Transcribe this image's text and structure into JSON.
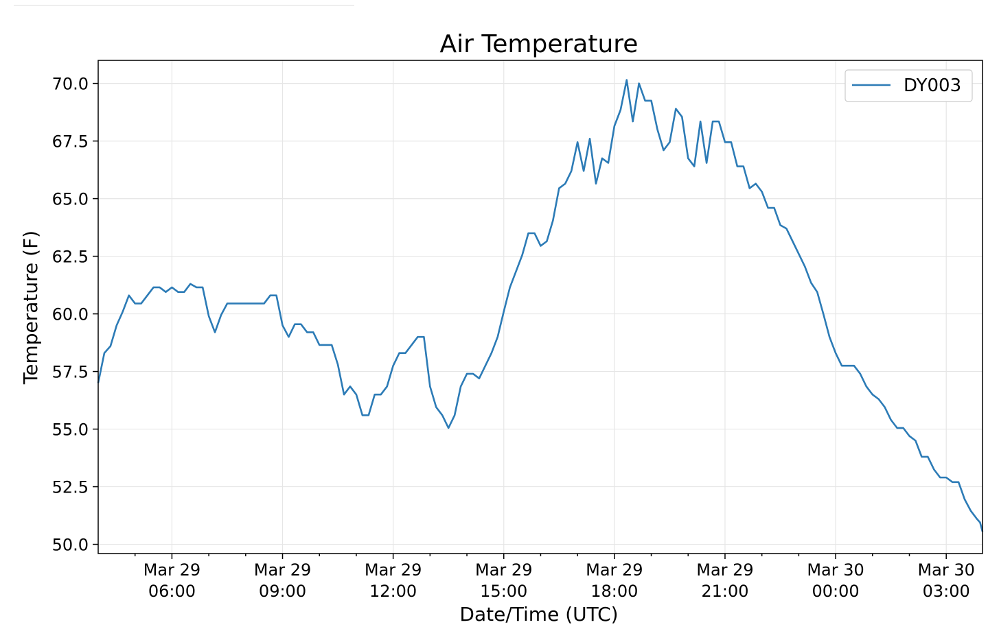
{
  "chart_data": {
    "type": "line",
    "title": "Air Temperature",
    "xlabel": "Date/Time (UTC)",
    "ylabel": "Temperature (F)",
    "ylim": [
      49.6,
      71.0
    ],
    "yticks": [
      50.0,
      52.5,
      55.0,
      57.5,
      60.0,
      62.5,
      65.0,
      67.5,
      70.0
    ],
    "ytick_labels": [
      "50.0",
      "52.5",
      "55.0",
      "57.5",
      "60.0",
      "62.5",
      "65.0",
      "67.5",
      "70.0"
    ],
    "xlim": [
      "2019-03-29T04:00",
      "2019-03-30T03:59"
    ],
    "xticks": [
      {
        "x": "2019-03-29T06:00",
        "line1": "Mar 29",
        "line2": "06:00"
      },
      {
        "x": "2019-03-29T09:00",
        "line1": "Mar 29",
        "line2": "09:00"
      },
      {
        "x": "2019-03-29T12:00",
        "line1": "Mar 29",
        "line2": "12:00"
      },
      {
        "x": "2019-03-29T15:00",
        "line1": "Mar 29",
        "line2": "15:00"
      },
      {
        "x": "2019-03-29T18:00",
        "line1": "Mar 29",
        "line2": "18:00"
      },
      {
        "x": "2019-03-29T21:00",
        "line1": "Mar 29",
        "line2": "21:00"
      },
      {
        "x": "2019-03-30T00:00",
        "line1": "Mar 30",
        "line2": "00:00"
      },
      {
        "x": "2019-03-30T03:00",
        "line1": "Mar 30",
        "line2": "03:00"
      }
    ],
    "minor_xticks": [
      "2019-03-29T05:00",
      "2019-03-29T07:00",
      "2019-03-29T08:00",
      "2019-03-29T10:00",
      "2019-03-29T11:00",
      "2019-03-29T13:00",
      "2019-03-29T14:00",
      "2019-03-29T16:00",
      "2019-03-29T17:00",
      "2019-03-29T19:00",
      "2019-03-29T20:00",
      "2019-03-29T22:00",
      "2019-03-29T23:00",
      "2019-03-30T01:00",
      "2019-03-30T02:00"
    ],
    "grid": true,
    "legend_position": "top-right",
    "series": [
      {
        "name": "DY003",
        "color": "#2c7bb6",
        "points": [
          [
            "2019-03-29T04:00",
            57.0
          ],
          [
            "2019-03-29T04:10",
            58.3
          ],
          [
            "2019-03-29T04:20",
            58.6
          ],
          [
            "2019-03-29T04:30",
            59.5
          ],
          [
            "2019-03-29T04:40",
            60.1
          ],
          [
            "2019-03-29T04:50",
            60.8
          ],
          [
            "2019-03-29T05:00",
            60.45
          ],
          [
            "2019-03-29T05:10",
            60.45
          ],
          [
            "2019-03-29T05:20",
            60.8
          ],
          [
            "2019-03-29T05:30",
            61.15
          ],
          [
            "2019-03-29T05:40",
            61.15
          ],
          [
            "2019-03-29T05:50",
            60.95
          ],
          [
            "2019-03-29T06:00",
            61.15
          ],
          [
            "2019-03-29T06:10",
            60.95
          ],
          [
            "2019-03-29T06:20",
            60.95
          ],
          [
            "2019-03-29T06:30",
            61.3
          ],
          [
            "2019-03-29T06:40",
            61.15
          ],
          [
            "2019-03-29T06:50",
            61.15
          ],
          [
            "2019-03-29T07:00",
            59.9
          ],
          [
            "2019-03-29T07:10",
            59.2
          ],
          [
            "2019-03-29T07:20",
            59.95
          ],
          [
            "2019-03-29T07:30",
            60.45
          ],
          [
            "2019-03-29T07:40",
            60.45
          ],
          [
            "2019-03-29T07:50",
            60.45
          ],
          [
            "2019-03-29T08:00",
            60.45
          ],
          [
            "2019-03-29T08:10",
            60.45
          ],
          [
            "2019-03-29T08:20",
            60.45
          ],
          [
            "2019-03-29T08:30",
            60.45
          ],
          [
            "2019-03-29T08:40",
            60.8
          ],
          [
            "2019-03-29T08:50",
            60.8
          ],
          [
            "2019-03-29T09:00",
            59.5
          ],
          [
            "2019-03-29T09:10",
            59.0
          ],
          [
            "2019-03-29T09:20",
            59.55
          ],
          [
            "2019-03-29T09:30",
            59.55
          ],
          [
            "2019-03-29T09:40",
            59.2
          ],
          [
            "2019-03-29T09:50",
            59.2
          ],
          [
            "2019-03-29T10:00",
            58.65
          ],
          [
            "2019-03-29T10:10",
            58.65
          ],
          [
            "2019-03-29T10:20",
            58.65
          ],
          [
            "2019-03-29T10:30",
            57.8
          ],
          [
            "2019-03-29T10:40",
            56.5
          ],
          [
            "2019-03-29T10:50",
            56.85
          ],
          [
            "2019-03-29T11:00",
            56.5
          ],
          [
            "2019-03-29T11:10",
            55.6
          ],
          [
            "2019-03-29T11:20",
            55.6
          ],
          [
            "2019-03-29T11:30",
            56.5
          ],
          [
            "2019-03-29T11:40",
            56.5
          ],
          [
            "2019-03-29T11:50",
            56.85
          ],
          [
            "2019-03-29T12:00",
            57.75
          ],
          [
            "2019-03-29T12:10",
            58.3
          ],
          [
            "2019-03-29T12:20",
            58.3
          ],
          [
            "2019-03-29T12:30",
            58.65
          ],
          [
            "2019-03-29T12:40",
            59.0
          ],
          [
            "2019-03-29T12:50",
            59.0
          ],
          [
            "2019-03-29T13:00",
            56.85
          ],
          [
            "2019-03-29T13:10",
            55.95
          ],
          [
            "2019-03-29T13:20",
            55.6
          ],
          [
            "2019-03-29T13:30",
            55.05
          ],
          [
            "2019-03-29T13:40",
            55.6
          ],
          [
            "2019-03-29T13:50",
            56.85
          ],
          [
            "2019-03-29T14:00",
            57.4
          ],
          [
            "2019-03-29T14:10",
            57.4
          ],
          [
            "2019-03-29T14:20",
            57.2
          ],
          [
            "2019-03-29T14:30",
            57.75
          ],
          [
            "2019-03-29T14:40",
            58.3
          ],
          [
            "2019-03-29T14:50",
            59.0
          ],
          [
            "2019-03-29T15:00",
            60.1
          ],
          [
            "2019-03-29T15:10",
            61.15
          ],
          [
            "2019-03-29T15:20",
            61.85
          ],
          [
            "2019-03-29T15:30",
            62.55
          ],
          [
            "2019-03-29T15:40",
            63.5
          ],
          [
            "2019-03-29T15:50",
            63.5
          ],
          [
            "2019-03-29T16:00",
            62.95
          ],
          [
            "2019-03-29T16:10",
            63.15
          ],
          [
            "2019-03-29T16:20",
            64.05
          ],
          [
            "2019-03-29T16:30",
            65.45
          ],
          [
            "2019-03-29T16:40",
            65.65
          ],
          [
            "2019-03-29T16:50",
            66.2
          ],
          [
            "2019-03-29T17:00",
            67.45
          ],
          [
            "2019-03-29T17:10",
            66.2
          ],
          [
            "2019-03-29T17:20",
            67.6
          ],
          [
            "2019-03-29T17:30",
            65.65
          ],
          [
            "2019-03-29T17:40",
            66.75
          ],
          [
            "2019-03-29T17:50",
            66.55
          ],
          [
            "2019-03-29T18:00",
            68.15
          ],
          [
            "2019-03-29T18:10",
            68.85
          ],
          [
            "2019-03-29T18:20",
            70.15
          ],
          [
            "2019-03-29T18:30",
            68.35
          ],
          [
            "2019-03-29T18:40",
            70.0
          ],
          [
            "2019-03-29T18:50",
            69.25
          ],
          [
            "2019-03-29T19:00",
            69.25
          ],
          [
            "2019-03-29T19:10",
            68.0
          ],
          [
            "2019-03-29T19:20",
            67.1
          ],
          [
            "2019-03-29T19:30",
            67.45
          ],
          [
            "2019-03-29T19:40",
            68.9
          ],
          [
            "2019-03-29T19:50",
            68.55
          ],
          [
            "2019-03-29T20:00",
            66.75
          ],
          [
            "2019-03-29T20:10",
            66.4
          ],
          [
            "2019-03-29T20:20",
            68.35
          ],
          [
            "2019-03-29T20:30",
            66.55
          ],
          [
            "2019-03-29T20:40",
            68.35
          ],
          [
            "2019-03-29T20:50",
            68.35
          ],
          [
            "2019-03-29T21:00",
            67.45
          ],
          [
            "2019-03-29T21:10",
            67.45
          ],
          [
            "2019-03-29T21:20",
            66.4
          ],
          [
            "2019-03-29T21:30",
            66.4
          ],
          [
            "2019-03-29T21:40",
            65.45
          ],
          [
            "2019-03-29T21:50",
            65.65
          ],
          [
            "2019-03-29T22:00",
            65.3
          ],
          [
            "2019-03-29T22:10",
            64.6
          ],
          [
            "2019-03-29T22:20",
            64.6
          ],
          [
            "2019-03-29T22:30",
            63.85
          ],
          [
            "2019-03-29T22:40",
            63.7
          ],
          [
            "2019-03-29T22:50",
            63.15
          ],
          [
            "2019-03-29T23:00",
            62.6
          ],
          [
            "2019-03-29T23:10",
            62.05
          ],
          [
            "2019-03-29T23:20",
            61.35
          ],
          [
            "2019-03-29T23:30",
            60.95
          ],
          [
            "2019-03-29T23:40",
            60.0
          ],
          [
            "2019-03-29T23:50",
            59.0
          ],
          [
            "2019-03-30T00:00",
            58.3
          ],
          [
            "2019-03-30T00:10",
            57.75
          ],
          [
            "2019-03-30T00:20",
            57.75
          ],
          [
            "2019-03-30T00:30",
            57.75
          ],
          [
            "2019-03-30T00:40",
            57.4
          ],
          [
            "2019-03-30T00:50",
            56.85
          ],
          [
            "2019-03-30T01:00",
            56.5
          ],
          [
            "2019-03-30T01:10",
            56.3
          ],
          [
            "2019-03-30T01:20",
            55.95
          ],
          [
            "2019-03-30T01:30",
            55.4
          ],
          [
            "2019-03-30T01:40",
            55.05
          ],
          [
            "2019-03-30T01:50",
            55.05
          ],
          [
            "2019-03-30T02:00",
            54.7
          ],
          [
            "2019-03-30T02:10",
            54.5
          ],
          [
            "2019-03-30T02:20",
            53.8
          ],
          [
            "2019-03-30T02:30",
            53.8
          ],
          [
            "2019-03-30T02:40",
            53.25
          ],
          [
            "2019-03-30T02:50",
            52.9
          ],
          [
            "2019-03-30T03:00",
            52.9
          ],
          [
            "2019-03-30T03:10",
            52.7
          ],
          [
            "2019-03-30T03:20",
            52.7
          ],
          [
            "2019-03-30T03:30",
            51.95
          ],
          [
            "2019-03-30T03:40",
            51.45
          ],
          [
            "2019-03-30T03:50",
            51.1
          ],
          [
            "2019-03-30T03:55",
            50.95
          ],
          [
            "2019-03-30T03:59",
            50.55
          ]
        ]
      }
    ]
  }
}
